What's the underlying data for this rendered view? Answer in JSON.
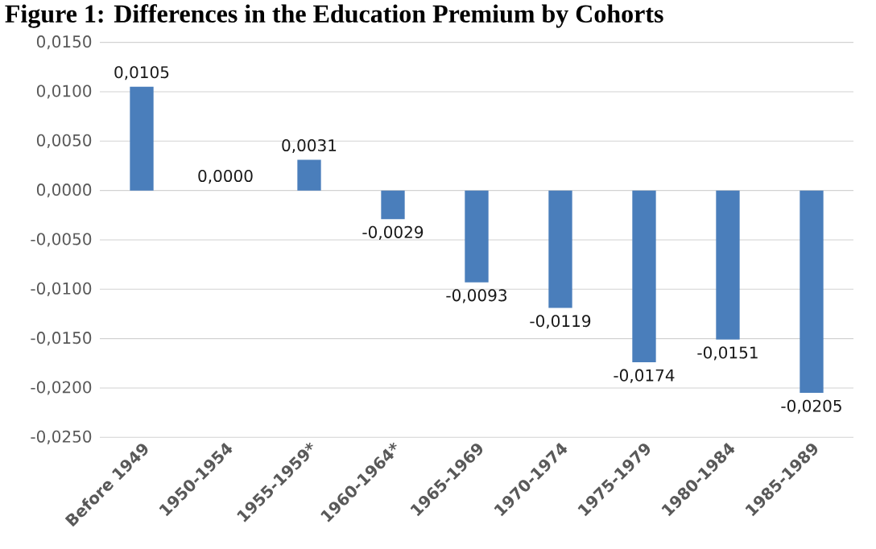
{
  "chart_data": {
    "type": "bar",
    "title": "Figure 1: Differences in the Education Premium by Cohorts",
    "categories": [
      "Before 1949",
      "1950-1954",
      "1955-1959*",
      "1960-1964*",
      "1965-1969",
      "1970-1974",
      "1975-1979",
      "1980-1984",
      "1985-1989"
    ],
    "values": [
      0.0105,
      0,
      0.0031,
      -0.0029,
      -0.0093,
      -0.0119,
      -0.0174,
      -0.0151,
      -0.0205
    ],
    "value_labels": [
      "0,0105",
      "0,0000",
      "0,0031",
      "-0,0029",
      "-0,0093",
      "-0,0119",
      "-0,0174",
      "-0,0151",
      "-0,0205"
    ],
    "color": "#4a7ebb",
    "ylim": [
      -0.025,
      0.015
    ],
    "yticks": [
      {
        "value": -0.025,
        "label": "-0,0250"
      },
      {
        "value": -0.02,
        "label": "-0,0200"
      },
      {
        "value": -0.015,
        "label": "-0,0150"
      },
      {
        "value": -0.01,
        "label": "-0,0100"
      },
      {
        "value": -0.005,
        "label": "-0,0050"
      },
      {
        "value": 0,
        "label": "0,0000"
      },
      {
        "value": 0.005,
        "label": "0,0050"
      },
      {
        "value": 0.01,
        "label": "0,0100"
      },
      {
        "value": 0.015,
        "label": "0,0150"
      }
    ],
    "grid": "y"
  }
}
